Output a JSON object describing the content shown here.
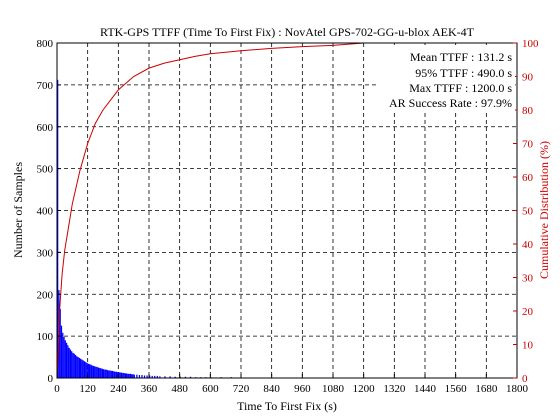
{
  "chart_data": {
    "type": "bar",
    "title": "RTK-GPS TTFF (Time To First Fix) : NovAtel GPS-702-GG-u-blox AEK-4T",
    "xlabel": "Time To First Fix (s)",
    "ylabel_left": "Number of Samples",
    "ylabel_right": "Cumulative Distribution (%)",
    "xlim": [
      0,
      1800
    ],
    "ylim_left": [
      0,
      800
    ],
    "ylim_right": [
      0,
      100
    ],
    "x_ticks": [
      "0",
      "120",
      "240",
      "360",
      "480",
      "600",
      "720",
      "840",
      "960",
      "1080",
      "1200",
      "1320",
      "1440",
      "1560",
      "1680",
      "1800"
    ],
    "y_left_ticks": [
      "0",
      "100",
      "200",
      "300",
      "400",
      "500",
      "600",
      "700",
      "800"
    ],
    "y_right_ticks": [
      "0",
      "10",
      "20",
      "30",
      "40",
      "50",
      "60",
      "70",
      "80",
      "90",
      "100"
    ],
    "grid": true,
    "stats": [
      {
        "label": "Mean TTFF :",
        "value": "131.2 s"
      },
      {
        "label": "95% TTFF :",
        "value": "490.0 s"
      },
      {
        "label": "Max TTFF :",
        "value": "1200.0 s"
      },
      {
        "label": "AR Success Rate :",
        "value": "97.9%"
      }
    ],
    "histogram": {
      "bin_width": 5,
      "bin_start": [
        0,
        5,
        10,
        15,
        20,
        25,
        30,
        35,
        40,
        45,
        50,
        55,
        60,
        65,
        70,
        75,
        80,
        85,
        90,
        95,
        100,
        105,
        110,
        115,
        120,
        125,
        130,
        135,
        140,
        145,
        150,
        155,
        160,
        165,
        170,
        175,
        180,
        185,
        190,
        195,
        200,
        205,
        210,
        215,
        220,
        225,
        230,
        235,
        240,
        245,
        250,
        255,
        260,
        265,
        270,
        275,
        280,
        285,
        290,
        295,
        300,
        310,
        320,
        330,
        340,
        350,
        360,
        370,
        380,
        390,
        400,
        420,
        440,
        460,
        480,
        500,
        520,
        540,
        560,
        580,
        600,
        640,
        680,
        720,
        760,
        800,
        880,
        960,
        1040,
        1120,
        1195
      ],
      "counts": [
        712,
        210,
        165,
        125,
        108,
        98,
        90,
        84,
        78,
        72,
        68,
        64,
        60,
        58,
        55,
        52,
        50,
        48,
        46,
        44,
        42,
        40,
        38,
        36,
        34,
        33,
        32,
        30,
        29,
        28,
        27,
        26,
        25,
        24,
        23,
        22,
        21,
        20,
        20,
        19,
        18,
        18,
        17,
        17,
        16,
        15,
        15,
        14,
        14,
        13,
        13,
        12,
        12,
        11,
        11,
        10,
        10,
        10,
        9,
        9,
        8,
        8,
        7,
        7,
        6,
        6,
        6,
        5,
        5,
        5,
        4,
        4,
        4,
        3,
        3,
        3,
        3,
        2,
        2,
        2,
        2,
        2,
        2,
        1,
        1,
        1,
        1,
        1,
        1,
        1,
        1
      ]
    },
    "cumulative": {
      "x": [
        0,
        5,
        10,
        20,
        30,
        45,
        60,
        90,
        120,
        150,
        180,
        210,
        240,
        270,
        300,
        360,
        420,
        480,
        540,
        600,
        720,
        840,
        960,
        1080,
        1200
      ],
      "y": [
        0,
        8,
        20,
        31,
        38,
        45,
        52,
        62,
        70,
        76,
        80,
        83,
        86,
        88,
        90,
        92.5,
        94,
        95,
        96,
        96.8,
        97.7,
        98.4,
        98.9,
        99.3,
        100
      ]
    },
    "colors": {
      "bars": "#0000ff",
      "cumulative": "#cc0000",
      "right_axis": "#cc0000",
      "grid": "#000000"
    }
  }
}
